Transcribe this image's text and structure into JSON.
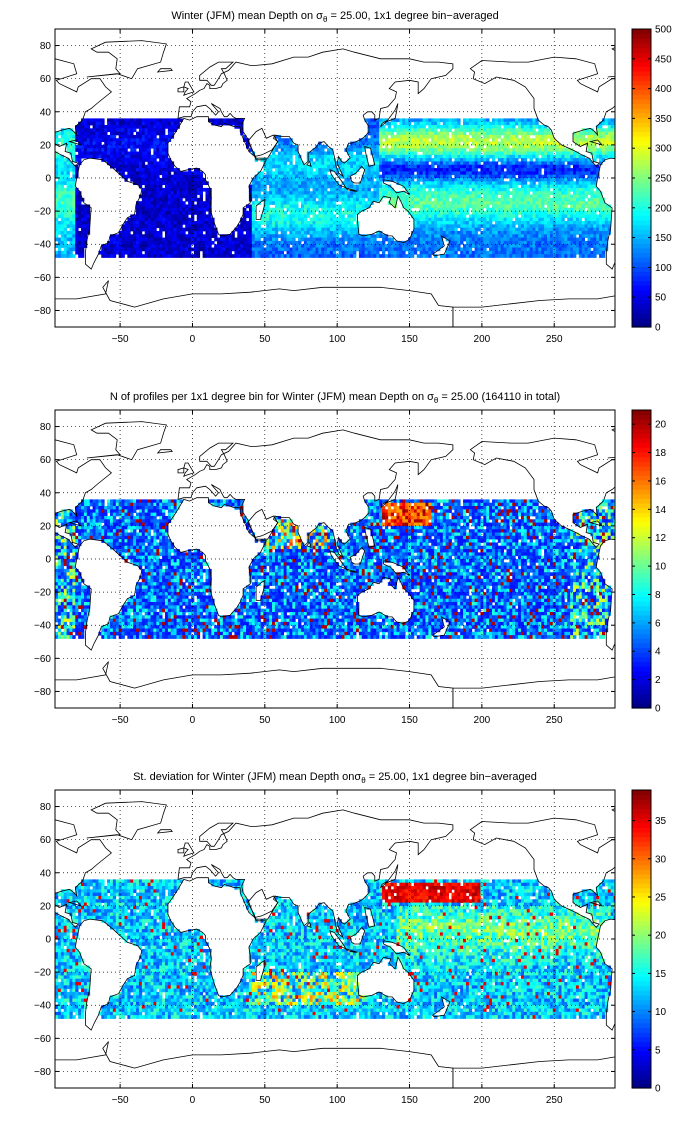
{
  "chart_data": [
    {
      "type": "heatmap",
      "title_parts": {
        "before": "Winter (JFM) mean Depth on σ",
        "sub": "θ",
        "after": " = 25.00, 1x1 degree bin−averaged"
      },
      "x_ticks": [
        "−50",
        "0",
        "50",
        "100",
        "150",
        "200",
        "250"
      ],
      "x_tick_values": [
        -50,
        0,
        50,
        100,
        150,
        200,
        250
      ],
      "y_ticks": [
        "80",
        "60",
        "40",
        "20",
        "0",
        "−20",
        "−40",
        "−60",
        "−80"
      ],
      "y_tick_values": [
        80,
        60,
        40,
        20,
        0,
        -20,
        -40,
        -60,
        -80
      ],
      "xlim": [
        -95,
        292
      ],
      "ylim": [
        -90,
        90
      ],
      "grid": true,
      "colorbar": {
        "range": [
          0,
          500
        ],
        "ticks": [
          "500",
          "450",
          "400",
          "350",
          "300",
          "250",
          "200",
          "150",
          "100",
          "50",
          "0"
        ],
        "tick_values": [
          500,
          450,
          400,
          350,
          300,
          250,
          200,
          150,
          100,
          50,
          0
        ],
        "colormap": "jet"
      },
      "field": "depth"
    },
    {
      "type": "heatmap",
      "title_parts": {
        "before": "N of profiles per 1x1 degree bin for Winter (JFM) mean Depth on σ",
        "sub": "θ",
        "after": " = 25.00 (164110 in total)"
      },
      "x_ticks": [
        "−50",
        "0",
        "50",
        "100",
        "150",
        "200",
        "250"
      ],
      "x_tick_values": [
        -50,
        0,
        50,
        100,
        150,
        200,
        250
      ],
      "y_ticks": [
        "80",
        "60",
        "40",
        "20",
        "0",
        "−20",
        "−40",
        "−60",
        "−80"
      ],
      "y_tick_values": [
        80,
        60,
        40,
        20,
        0,
        -20,
        -40,
        -60,
        -80
      ],
      "xlim": [
        -95,
        292
      ],
      "ylim": [
        -90,
        90
      ],
      "grid": true,
      "colorbar": {
        "range": [
          0,
          21
        ],
        "ticks": [
          "20",
          "18",
          "16",
          "14",
          "12",
          "10",
          "8",
          "6",
          "4",
          "2",
          "0"
        ],
        "tick_values": [
          20,
          18,
          16,
          14,
          12,
          10,
          8,
          6,
          4,
          2,
          0
        ],
        "colormap": "jet"
      },
      "field": "count"
    },
    {
      "type": "heatmap",
      "title_parts": {
        "before": "St. deviation for Winter (JFM) mean Depth onσ",
        "sub": "θ",
        "after": " = 25.00, 1x1 degree bin−averaged"
      },
      "x_ticks": [
        "−50",
        "0",
        "50",
        "100",
        "150",
        "200",
        "250"
      ],
      "x_tick_values": [
        -50,
        0,
        50,
        100,
        150,
        200,
        250
      ],
      "y_ticks": [
        "80",
        "60",
        "40",
        "20",
        "0",
        "−20",
        "−40",
        "−60",
        "−80"
      ],
      "y_tick_values": [
        80,
        60,
        40,
        20,
        0,
        -20,
        -40,
        -60,
        -80
      ],
      "xlim": [
        -95,
        292
      ],
      "ylim": [
        -90,
        90
      ],
      "grid": true,
      "colorbar": {
        "range": [
          0,
          39
        ],
        "ticks": [
          "35",
          "30",
          "25",
          "20",
          "15",
          "10",
          "5",
          "0"
        ],
        "tick_values": [
          35,
          30,
          25,
          20,
          15,
          10,
          5,
          0
        ],
        "colormap": "jet"
      },
      "field": "std"
    }
  ]
}
